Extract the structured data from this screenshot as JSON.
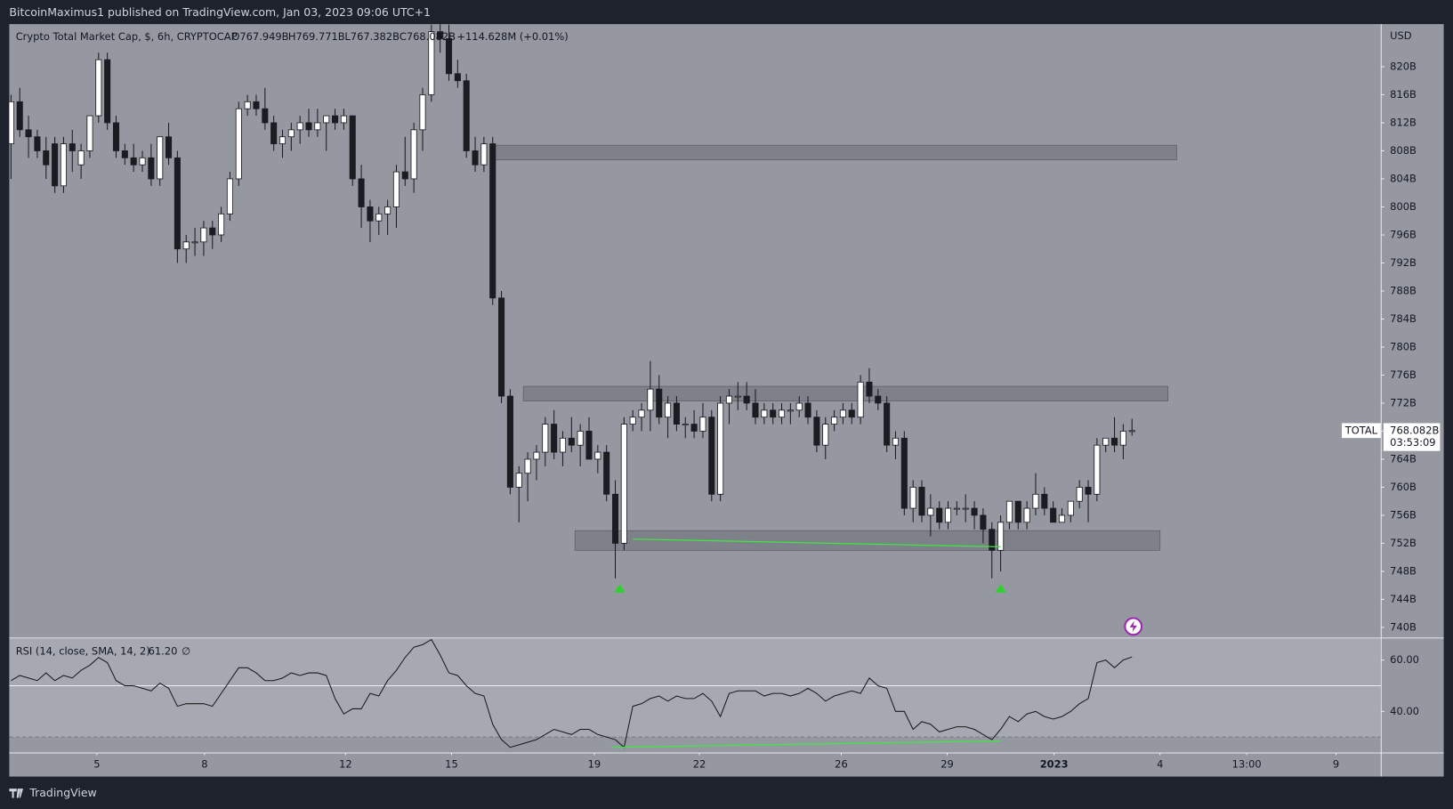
{
  "header": {
    "published": "BitcoinMaximus1 published on TradingView.com, Jan 03, 2023 09:06 UTC+1"
  },
  "footer": {
    "brand": "TradingView"
  },
  "chart_data": [
    {
      "type": "candlestick",
      "title": "Crypto Total Market Cap, $, 6h, CRYPTOCAP",
      "ohlc_labels": [
        "O767.949B",
        "H769.771B",
        "L767.382B",
        "C768.082B",
        "+114.628M (+0.01%)"
      ],
      "currency": "USD",
      "symbol": "TOTAL",
      "last_price_label": "768.082B",
      "countdown": "03:53:09",
      "up_color": "#ffffff",
      "down_color": "#1b1c22",
      "wick_color": "#1b1c22",
      "open": [
        809,
        815,
        811,
        810,
        808,
        809,
        803,
        809,
        806,
        808,
        813,
        821,
        812,
        808,
        807,
        806,
        807,
        804,
        810,
        807,
        794,
        795,
        795,
        797,
        796,
        799,
        804,
        814,
        815,
        814,
        812,
        809,
        810,
        811,
        812,
        811,
        812,
        813,
        812,
        813,
        804,
        800,
        798,
        799,
        800,
        805,
        804,
        811,
        816,
        825,
        824,
        819,
        818,
        808,
        806,
        809,
        787,
        773,
        760,
        762,
        764,
        765,
        769,
        765,
        767,
        766,
        768,
        764,
        765,
        759,
        752,
        769,
        770,
        771,
        774,
        770,
        772,
        769,
        769,
        768,
        770,
        759,
        772,
        773,
        773,
        772,
        770,
        771,
        770,
        771,
        771,
        772,
        770,
        766,
        769,
        770,
        771,
        770,
        775,
        773,
        772,
        766,
        767,
        757,
        760,
        756,
        757,
        755,
        757,
        757,
        757,
        756,
        754,
        751,
        755,
        758,
        755,
        757,
        759,
        757,
        755,
        756,
        758,
        760,
        759,
        766,
        767,
        766,
        767.949
      ],
      "high": [
        816,
        817,
        813,
        811,
        810,
        810,
        810,
        811,
        809,
        813,
        822,
        822,
        813,
        809,
        809,
        808,
        809,
        810,
        812,
        808,
        796,
        797,
        798,
        798,
        800,
        805,
        815,
        816,
        816,
        817,
        813,
        811,
        812,
        813,
        814,
        814,
        813,
        814,
        814,
        813,
        806,
        801,
        800,
        801,
        806,
        810,
        812,
        817,
        826,
        827,
        826,
        821,
        819,
        810,
        810,
        810,
        788,
        774,
        763,
        765,
        766,
        770,
        771,
        768,
        770,
        769,
        770,
        766,
        766,
        761,
        770,
        771,
        772,
        778,
        776,
        773,
        773,
        770,
        771,
        772,
        771,
        773,
        774,
        775,
        775,
        774,
        772,
        772,
        772,
        772,
        773,
        773,
        771,
        770,
        771,
        772,
        772,
        776,
        777,
        774,
        773,
        768,
        768,
        761,
        761,
        759,
        758,
        758,
        758,
        759,
        758,
        757,
        755,
        756,
        758,
        758,
        758,
        762,
        760,
        758,
        757,
        758,
        761,
        761,
        767,
        767,
        770,
        769,
        769.771
      ],
      "low": [
        804,
        810,
        807,
        807,
        804,
        802,
        802,
        805,
        804,
        807,
        812,
        811,
        807,
        806,
        805,
        805,
        803,
        803,
        806,
        792,
        792,
        793,
        793,
        794,
        795,
        798,
        803,
        813,
        813,
        811,
        808,
        807,
        808,
        809,
        810,
        810,
        808,
        811,
        811,
        803,
        797,
        795,
        796,
        796,
        797,
        803,
        802,
        808,
        815,
        822,
        818,
        817,
        807,
        805,
        805,
        786,
        772,
        759,
        755,
        758,
        761,
        763,
        764,
        763,
        765,
        763,
        764,
        762,
        758,
        747,
        751,
        768,
        768,
        768,
        769,
        767,
        768,
        767,
        767,
        767,
        758,
        758,
        769,
        771,
        771,
        769,
        769,
        769,
        769,
        769,
        770,
        769,
        765,
        764,
        768,
        769,
        769,
        769,
        772,
        771,
        765,
        764,
        756,
        755,
        755,
        753,
        754,
        754,
        756,
        755,
        754,
        752,
        747,
        748,
        754,
        754,
        754,
        756,
        756,
        755,
        755,
        755,
        757,
        755,
        758,
        765,
        765,
        764,
        767.382
      ],
      "close": [
        815,
        811,
        810,
        808,
        806,
        803,
        809,
        808,
        808,
        813,
        821,
        812,
        808,
        807,
        806,
        807,
        804,
        810,
        807,
        794,
        795,
        795,
        797,
        796,
        799,
        804,
        814,
        815,
        814,
        812,
        809,
        810,
        811,
        812,
        811,
        812,
        813,
        812,
        813,
        804,
        800,
        798,
        799,
        800,
        805,
        804,
        811,
        816,
        825,
        824,
        819,
        818,
        808,
        806,
        809,
        787,
        773,
        760,
        762,
        764,
        765,
        769,
        765,
        767,
        766,
        768,
        764,
        765,
        759,
        752,
        769,
        770,
        771,
        774,
        770,
        772,
        769,
        769,
        768,
        770,
        759,
        772,
        773,
        773,
        772,
        770,
        771,
        770,
        771,
        771,
        772,
        770,
        766,
        769,
        770,
        771,
        770,
        775,
        773,
        772,
        766,
        767,
        757,
        760,
        756,
        757,
        755,
        757,
        757,
        757,
        756,
        754,
        751,
        755,
        758,
        755,
        757,
        759,
        757,
        755,
        756,
        758,
        760,
        759,
        766,
        767,
        766,
        768,
        768.082
      ],
      "xlim": [
        -0.2,
        156.4
      ],
      "ylim": [
        738.55,
        826.08
      ],
      "yticks": [
        {
          "value": 820,
          "label": "820B"
        },
        {
          "value": 816,
          "label": "816B"
        },
        {
          "value": 812,
          "label": "812B"
        },
        {
          "value": 808,
          "label": "808B"
        },
        {
          "value": 804,
          "label": "804B"
        },
        {
          "value": 800,
          "label": "800B"
        },
        {
          "value": 796,
          "label": "796B"
        },
        {
          "value": 792,
          "label": "792B"
        },
        {
          "value": 788,
          "label": "788B"
        },
        {
          "value": 784,
          "label": "784B"
        },
        {
          "value": 780,
          "label": "780B"
        },
        {
          "value": 776,
          "label": "776B"
        },
        {
          "value": 772,
          "label": "772B"
        },
        {
          "value": 768,
          "label": "768B"
        },
        {
          "value": 764,
          "label": "764B"
        },
        {
          "value": 760,
          "label": "760B"
        },
        {
          "value": 756,
          "label": "756B"
        },
        {
          "value": 752,
          "label": "752B"
        },
        {
          "value": 748,
          "label": "748B"
        },
        {
          "value": 744,
          "label": "744B"
        },
        {
          "value": 740,
          "label": "740B"
        }
      ],
      "zone_color": "#6e7079",
      "zones": [
        {
          "x": [
            54.8,
            133.1
          ],
          "y": [
            806.7,
            808.8
          ]
        },
        {
          "x": [
            58.5,
            132.1
          ],
          "y": [
            772.3,
            774.4
          ]
        },
        {
          "x": [
            64.4,
            131.2
          ],
          "y": [
            751,
            753.8
          ]
        }
      ],
      "divergence": {
        "x": [
          71,
          113
        ],
        "y": [
          752.6,
          751.5
        ],
        "color": "#3ee83e"
      },
      "markers": {
        "x": [
          69.5,
          113
        ],
        "y": [
          745.5,
          745.5
        ],
        "color": "#2ed12e"
      }
    },
    {
      "type": "line",
      "title": "RSI (14, close, SMA, 14, 2)",
      "value_label": "61.20",
      "extra": "∅",
      "color": "#1a1a1a",
      "values": [
        52,
        54,
        53,
        52,
        55,
        52,
        54,
        53,
        56,
        58,
        61,
        59,
        52,
        50,
        50,
        49,
        48,
        51,
        49,
        42,
        43,
        43,
        43,
        42,
        47,
        52,
        57,
        57,
        55,
        52,
        52,
        53,
        55,
        54,
        55,
        55,
        54,
        45,
        39,
        41,
        41,
        47,
        46,
        52,
        56,
        61,
        65,
        66,
        68,
        62,
        55,
        54,
        50,
        47,
        46,
        35,
        29,
        26,
        27,
        28,
        29,
        31,
        33,
        32,
        31,
        33,
        33,
        31,
        30,
        29,
        26,
        42,
        43,
        45,
        46,
        44,
        46,
        45,
        45,
        47,
        44,
        38,
        47,
        48,
        48,
        48,
        46,
        47,
        47,
        46,
        47,
        49,
        47,
        44,
        46,
        47,
        48,
        47,
        53,
        50,
        49,
        40,
        40,
        33,
        36,
        35,
        32,
        33,
        34,
        34,
        33,
        31,
        29,
        33,
        38,
        36,
        39,
        40,
        38,
        37,
        38,
        40,
        43,
        45,
        59,
        60,
        57,
        60,
        61.2
      ],
      "xlim": [
        -0.2,
        156.4
      ],
      "ylim": [
        24,
        68.4
      ],
      "yticks": [
        {
          "value": 60,
          "label": "60.00"
        },
        {
          "value": 40,
          "label": "40.00"
        }
      ],
      "band": [
        30,
        70
      ],
      "midline": 50,
      "lower": 30,
      "xticks": [
        {
          "value": 9.8,
          "label": "5"
        },
        {
          "value": 22.1,
          "label": "8"
        },
        {
          "value": 38.2,
          "label": "12"
        },
        {
          "value": 50.3,
          "label": "15"
        },
        {
          "value": 66.6,
          "label": "19"
        },
        {
          "value": 78.6,
          "label": "22"
        },
        {
          "value": 94.8,
          "label": "26"
        },
        {
          "value": 106.9,
          "label": "29"
        },
        {
          "value": 119.1,
          "label": "2023"
        },
        {
          "value": 131.2,
          "label": "4"
        },
        {
          "value": 141.1,
          "label": "13:00"
        },
        {
          "value": 151.3,
          "label": "9"
        }
      ],
      "divergence": {
        "x": [
          68.5,
          113
        ],
        "y": [
          26,
          28.5
        ],
        "color": "#3ee83e"
      }
    }
  ]
}
